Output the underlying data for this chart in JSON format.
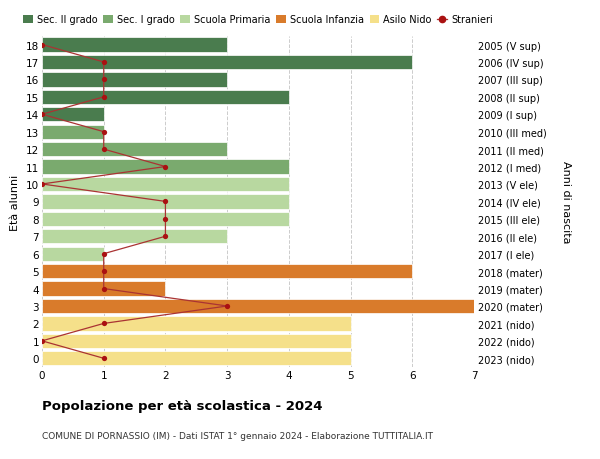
{
  "ages": [
    18,
    17,
    16,
    15,
    14,
    13,
    12,
    11,
    10,
    9,
    8,
    7,
    6,
    5,
    4,
    3,
    2,
    1,
    0
  ],
  "right_labels": [
    "2005 (V sup)",
    "2006 (IV sup)",
    "2007 (III sup)",
    "2008 (II sup)",
    "2009 (I sup)",
    "2010 (III med)",
    "2011 (II med)",
    "2012 (I med)",
    "2013 (V ele)",
    "2014 (IV ele)",
    "2015 (III ele)",
    "2016 (II ele)",
    "2017 (I ele)",
    "2018 (mater)",
    "2019 (mater)",
    "2020 (mater)",
    "2021 (nido)",
    "2022 (nido)",
    "2023 (nido)"
  ],
  "bar_values": [
    3,
    6,
    3,
    4,
    1,
    1,
    3,
    4,
    4,
    4,
    4,
    3,
    1,
    6,
    2,
    7,
    5,
    5,
    5
  ],
  "bar_colors": [
    "#4a7c4e",
    "#4a7c4e",
    "#4a7c4e",
    "#4a7c4e",
    "#4a7c4e",
    "#7aaa6e",
    "#7aaa6e",
    "#7aaa6e",
    "#b8d8a0",
    "#b8d8a0",
    "#b8d8a0",
    "#b8d8a0",
    "#b8d8a0",
    "#d97b2b",
    "#d97b2b",
    "#d97b2b",
    "#f5e08a",
    "#f5e08a",
    "#f5e08a"
  ],
  "stranieri_x": [
    0,
    1,
    1,
    1,
    0,
    1,
    1,
    2,
    0,
    2,
    2,
    2,
    1,
    1,
    1,
    3,
    1,
    0,
    1
  ],
  "legend_labels": [
    "Sec. II grado",
    "Sec. I grado",
    "Scuola Primaria",
    "Scuola Infanzia",
    "Asilo Nido",
    "Stranieri"
  ],
  "legend_colors": [
    "#4a7c4e",
    "#7aaa6e",
    "#b8d8a0",
    "#d97b2b",
    "#f5e08a",
    "#aa2222"
  ],
  "ylabel_left": "Età alunni",
  "ylabel_right": "Anni di nascita",
  "title": "Popolazione per età scolastica - 2024",
  "subtitle": "COMUNE DI PORNASSIO (IM) - Dati ISTAT 1° gennaio 2024 - Elaborazione TUTTITALIA.IT",
  "xlim": [
    0,
    7
  ],
  "xticks": [
    0,
    1,
    2,
    3,
    4,
    5,
    6,
    7
  ],
  "background_color": "#ffffff",
  "grid_color": "#cccccc",
  "stranieri_color": "#aa1111",
  "stranieri_line_color": "#aa3333"
}
